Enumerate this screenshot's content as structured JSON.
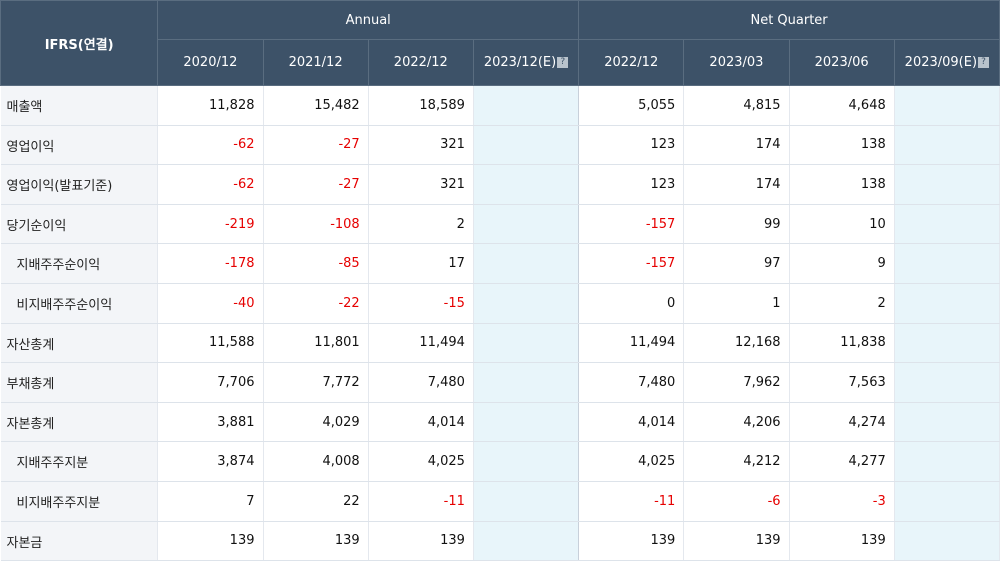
{
  "header": {
    "corner": "IFRS(연결)",
    "annual": "Annual",
    "quarter": "Net Quarter",
    "periods": [
      "2020/12",
      "2021/12",
      "2022/12",
      "2023/12(E)",
      "2022/12",
      "2023/03",
      "2023/06",
      "2023/09(E)"
    ],
    "info_icon": "?"
  },
  "rows": [
    {
      "label": "매출액",
      "sub": false,
      "values": [
        "11,828",
        "15,482",
        "18,589",
        "",
        "5,055",
        "4,815",
        "4,648",
        ""
      ]
    },
    {
      "label": "영업이익",
      "sub": false,
      "values": [
        "-62",
        "-27",
        "321",
        "",
        "123",
        "174",
        "138",
        ""
      ]
    },
    {
      "label": "영업이익(발표기준)",
      "sub": false,
      "values": [
        "-62",
        "-27",
        "321",
        "",
        "123",
        "174",
        "138",
        ""
      ]
    },
    {
      "label": "당기순이익",
      "sub": false,
      "values": [
        "-219",
        "-108",
        "2",
        "",
        "-157",
        "99",
        "10",
        ""
      ]
    },
    {
      "label": "지배주주순이익",
      "sub": true,
      "values": [
        "-178",
        "-85",
        "17",
        "",
        "-157",
        "97",
        "9",
        ""
      ]
    },
    {
      "label": "비지배주주순이익",
      "sub": true,
      "values": [
        "-40",
        "-22",
        "-15",
        "",
        "0",
        "1",
        "2",
        ""
      ]
    },
    {
      "label": "자산총계",
      "sub": false,
      "values": [
        "11,588",
        "11,801",
        "11,494",
        "",
        "11,494",
        "12,168",
        "11,838",
        ""
      ]
    },
    {
      "label": "부채총계",
      "sub": false,
      "values": [
        "7,706",
        "7,772",
        "7,480",
        "",
        "7,480",
        "7,962",
        "7,563",
        ""
      ]
    },
    {
      "label": "자본총계",
      "sub": false,
      "values": [
        "3,881",
        "4,029",
        "4,014",
        "",
        "4,014",
        "4,206",
        "4,274",
        ""
      ]
    },
    {
      "label": "지배주주지분",
      "sub": true,
      "values": [
        "3,874",
        "4,008",
        "4,025",
        "",
        "4,025",
        "4,212",
        "4,277",
        ""
      ]
    },
    {
      "label": "비지배주주지분",
      "sub": true,
      "values": [
        "7",
        "22",
        "-11",
        "",
        "-11",
        "-6",
        "-3",
        ""
      ]
    },
    {
      "label": "자본금",
      "sub": false,
      "values": [
        "139",
        "139",
        "139",
        "",
        "139",
        "139",
        "139",
        ""
      ]
    }
  ],
  "colors": {
    "header_bg": "#3d5268",
    "negative": "#e60000",
    "estimate_bg": "#e8f5fa"
  }
}
